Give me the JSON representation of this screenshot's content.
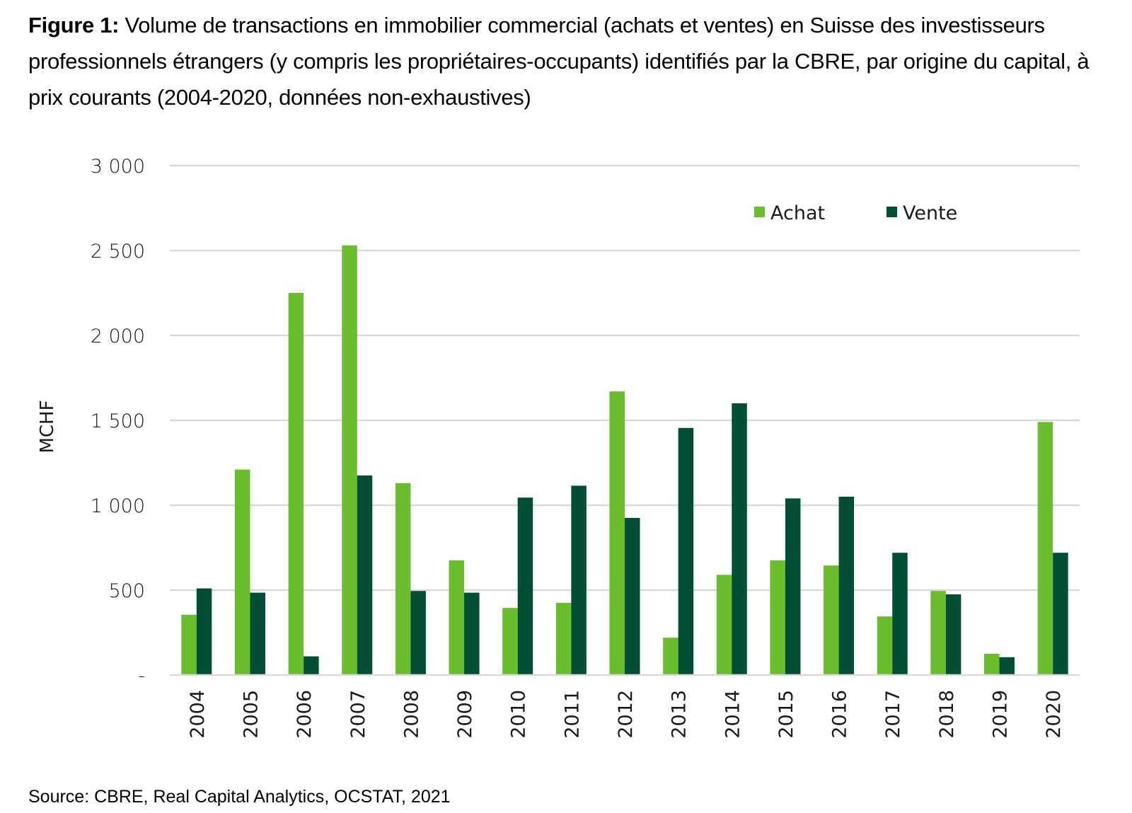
{
  "caption": {
    "label": "Figure 1:",
    "text": "Volume de transactions en immobilier commercial (achats et ventes) en Suisse des investisseurs professionnels étrangers (y compris les propriétaires-occupants) identifiés par la CBRE, par origine du capital, à prix courants (2004-2020, données non-exhaustives)"
  },
  "source": "Source: CBRE, Real Capital Analytics, OCSTAT, 2021",
  "chart_data": {
    "type": "bar",
    "title": "Volume de transactions en immobilier commercial (achats et ventes) en Suisse des investisseurs professionnels étrangers (y compris les propriétaires-occupants) identifiés par la CBRE, par origine du capital, à prix courants (2004-2020, données non-exhaustives)",
    "xlabel": "",
    "ylabel": "MCHF",
    "ylim": [
      0,
      3000
    ],
    "yticks": [
      0,
      500,
      1000,
      1500,
      2000,
      2500,
      3000
    ],
    "ytick_labels": [
      "-",
      "500",
      "1 000",
      "1 500",
      "2 000",
      "2 500",
      "3 000"
    ],
    "grid": true,
    "legend_position": "top-right",
    "categories": [
      "2004",
      "2005",
      "2006",
      "2007",
      "2008",
      "2009",
      "2010",
      "2011",
      "2012",
      "2013",
      "2014",
      "2015",
      "2016",
      "2017",
      "2018",
      "2019",
      "2020"
    ],
    "series": [
      {
        "name": "Achat",
        "color": "#6ABD2C",
        "values": [
          355,
          1210,
          2250,
          2530,
          1130,
          675,
          395,
          425,
          1670,
          220,
          590,
          675,
          645,
          345,
          495,
          125,
          1490
        ]
      },
      {
        "name": "Vente",
        "color": "#034E36",
        "values": [
          510,
          485,
          110,
          1175,
          495,
          485,
          1045,
          1115,
          925,
          1455,
          1600,
          1040,
          1050,
          720,
          475,
          105,
          720
        ]
      }
    ]
  },
  "colors": {
    "grid": "#D9D9D9",
    "text": "#1a1a1a"
  }
}
